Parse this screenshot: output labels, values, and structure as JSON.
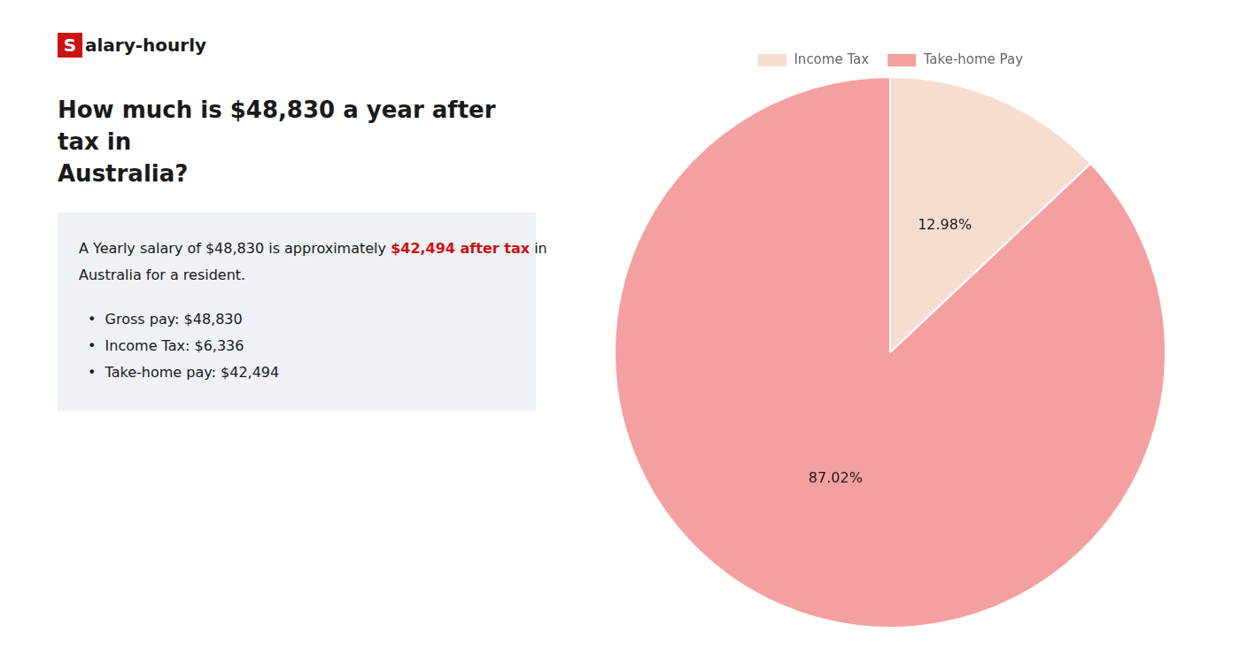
{
  "chart_data": {
    "type": "pie",
    "title": [
      "How much is $48,830 a year after tax in",
      "Australia?"
    ],
    "annotations": [
      [
        {
          "text": "S",
          "color": "#cc1111"
        },
        {
          "text": "alary-hourly"
        }
      ],
      [
        {
          "text": "A Yearly salary of $48,830 is approximately "
        },
        {
          "text": "$42,494 after tax",
          "color": "#cc1111"
        },
        {
          "text": " in"
        }
      ],
      [
        {
          "text": "Australia for a resident."
        }
      ],
      [
        {
          "text": "•  Gross pay: $48,830"
        }
      ],
      [
        {
          "text": "•  Income Tax: $6,336"
        }
      ],
      [
        {
          "text": "•  Take-home pay: $42,494"
        }
      ]
    ],
    "categories": [
      "Income Tax",
      "Take-home Pay"
    ],
    "values": [
      12.98,
      87.02
    ],
    "value_labels": [
      "12.98%",
      "87.02%"
    ],
    "colors": [
      "#f7ddd0",
      "#f5a0a0"
    ],
    "data_labels": true,
    "legend": "top"
  }
}
